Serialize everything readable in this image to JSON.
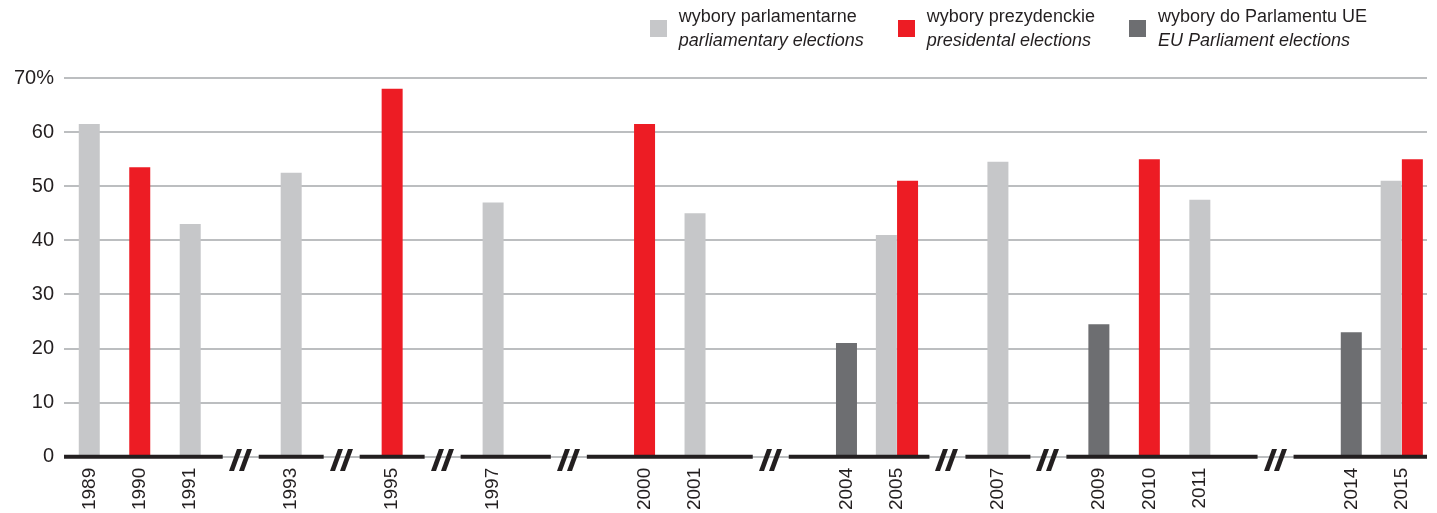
{
  "chart_data": {
    "type": "bar",
    "categories": [
      "1989",
      "1990",
      "1991",
      null,
      "1993",
      null,
      "1995",
      null,
      "1997",
      null,
      null,
      "2000",
      "2001",
      null,
      null,
      "2004",
      "2005",
      null,
      "2007",
      null,
      "2009",
      "2010",
      "2011",
      null,
      null,
      "2014",
      "2015"
    ],
    "series": [
      {
        "name": "wybory parlamentarne\nparliamentary elections",
        "color": "#c6c7c9",
        "values": [
          61.5,
          null,
          43,
          null,
          52.5,
          null,
          null,
          null,
          47,
          null,
          null,
          null,
          45,
          null,
          null,
          null,
          41,
          null,
          54.5,
          null,
          null,
          null,
          47.5,
          null,
          null,
          null,
          51
        ]
      },
      {
        "name": "wybory prezydenckie\npresidental elections",
        "color": "#ed1c24",
        "values": [
          null,
          53.5,
          null,
          null,
          null,
          null,
          68,
          null,
          null,
          null,
          null,
          61.5,
          null,
          null,
          null,
          null,
          51,
          null,
          null,
          null,
          null,
          55,
          null,
          null,
          null,
          null,
          55
        ]
      },
      {
        "name": "wybory do Parlamentu UE\nEU Parliament elections",
        "color": "#6d6e71",
        "values": [
          null,
          null,
          null,
          null,
          null,
          null,
          null,
          null,
          null,
          null,
          null,
          null,
          null,
          null,
          null,
          21,
          null,
          null,
          null,
          null,
          24.5,
          null,
          null,
          null,
          null,
          23,
          null
        ]
      }
    ],
    "ylim": [
      0,
      70
    ],
    "yticks": [
      0,
      10,
      20,
      30,
      40,
      50,
      60,
      {
        "value": 70,
        "label": "70%"
      }
    ],
    "grid": "y",
    "legend": "top right"
  }
}
